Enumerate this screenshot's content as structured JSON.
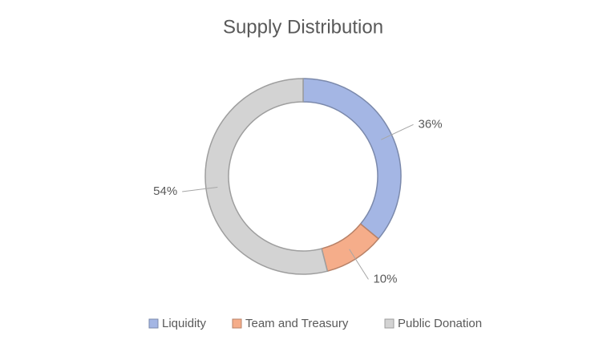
{
  "chart_data": {
    "type": "donut",
    "title": "Supply Distribution",
    "categories": [
      "Liquidity",
      "Team and Treasury",
      "Public Donation"
    ],
    "values": [
      36,
      10,
      54
    ],
    "value_labels": [
      "36%",
      "10%",
      "54%"
    ],
    "colors": [
      "#a4b6e4",
      "#f5ad8a",
      "#d3d3d3"
    ],
    "legend": "bottom"
  }
}
